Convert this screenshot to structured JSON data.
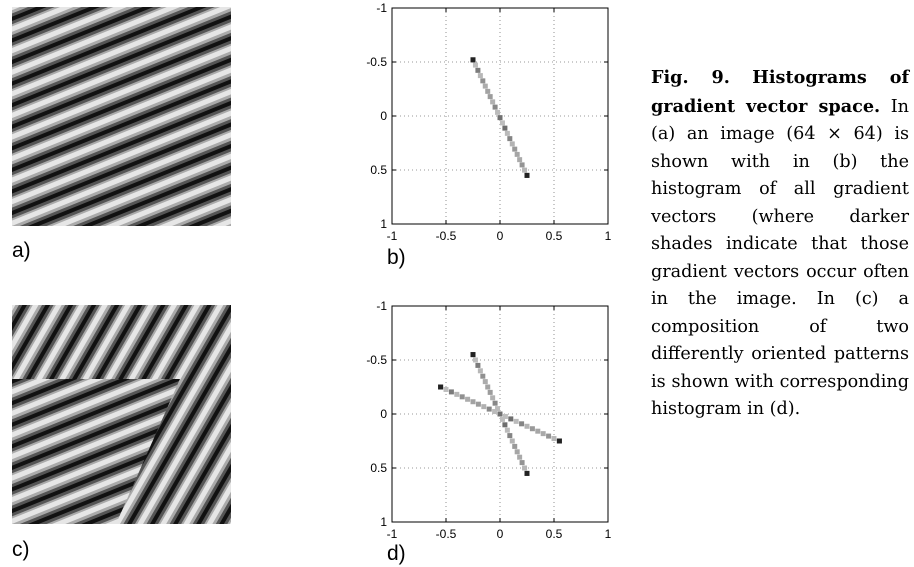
{
  "figure": {
    "panels": [
      {
        "id": "a",
        "label": "a)"
      },
      {
        "id": "b",
        "label": "b)"
      },
      {
        "id": "c",
        "label": "c)"
      },
      {
        "id": "d",
        "label": "d)"
      }
    ],
    "caption": {
      "figure_number": "Fig. 9.",
      "title": "Histograms of gradient vector space.",
      "text": "In (a) an image (64 × 64) is shown with in (b) the histogram of all gradient vectors (where darker shades indicate that those gradient vectors occur often in the image. In (c) a composition of two differently oriented patterns is shown with corresponding histogram in (d)."
    }
  },
  "chart_data": [
    {
      "panel": "b",
      "type": "heatmap",
      "xlim": [
        -1,
        1
      ],
      "ylim": [
        -1,
        1
      ],
      "y_axis_inverted": true,
      "grid": true,
      "x_tick_labels": [
        "-1",
        "-0.5",
        "0",
        "0.5",
        "1"
      ],
      "y_tick_labels": [
        "-1",
        "-0.5",
        "0",
        "0.5",
        "1"
      ],
      "segments": [
        {
          "from": [
            -0.25,
            -0.52
          ],
          "to": [
            0.25,
            0.55
          ]
        }
      ],
      "dark_endpoints": [
        [
          -0.25,
          -0.52
        ],
        [
          0.25,
          0.55
        ]
      ]
    },
    {
      "panel": "d",
      "type": "heatmap",
      "xlim": [
        -1,
        1
      ],
      "ylim": [
        -1,
        1
      ],
      "y_axis_inverted": true,
      "grid": true,
      "x_tick_labels": [
        "-1",
        "-0.5",
        "0",
        "0.5",
        "1"
      ],
      "y_tick_labels": [
        "-1",
        "-0.5",
        "0",
        "0.5",
        "1"
      ],
      "segments": [
        {
          "from": [
            -0.25,
            -0.55
          ],
          "to": [
            0.25,
            0.55
          ]
        },
        {
          "from": [
            -0.55,
            -0.25
          ],
          "to": [
            0.55,
            0.25
          ]
        }
      ],
      "dark_endpoints": [
        [
          -0.25,
          -0.55
        ],
        [
          0.25,
          0.55
        ],
        [
          -0.55,
          -0.25
        ],
        [
          0.55,
          0.25
        ]
      ]
    }
  ]
}
